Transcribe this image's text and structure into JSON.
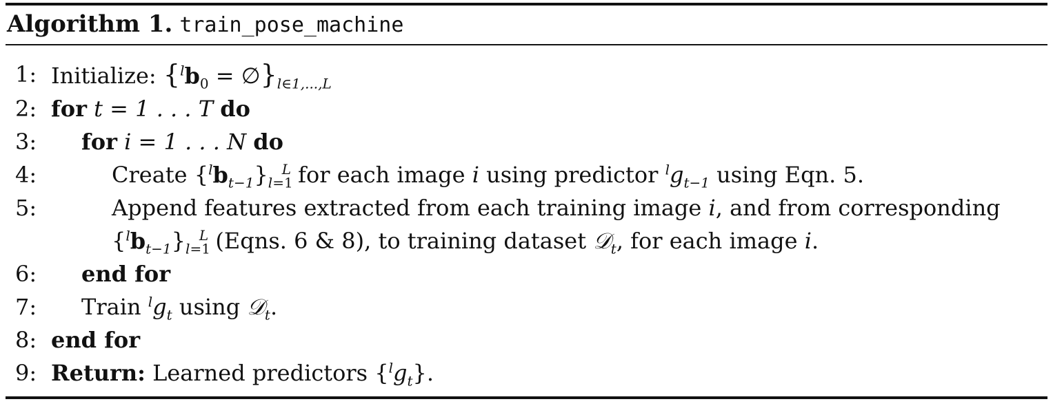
{
  "algorithm": {
    "label": "Algorithm 1.",
    "name": "train_pose_machine"
  },
  "lines": {
    "l1": {
      "num": "1:",
      "kw": "Initialize:",
      "math": "{ˡb₀ = ∅}",
      "sub": "l∈1,...,L"
    },
    "l2": {
      "num": "2:",
      "for": "for",
      "expr": "t = 1 . . . T",
      "do": "do"
    },
    "l3": {
      "num": "3:",
      "for": "for",
      "expr": "i = 1 . . . N",
      "do": "do"
    },
    "l4": {
      "num": "4:",
      "text_a": "Create {",
      "text_b": " for each image ",
      "var_i": "i",
      "text_c": " using predictor ",
      "text_d": " using Eqn. 5."
    },
    "l5": {
      "num": "5:",
      "text_a": "Append features extracted from each training image ",
      "var_i": "i",
      "text_b": ", and from corresponding"
    },
    "l5b": {
      "text_a": " (Eqns. 6 & 8), to training dataset ",
      "text_b": ", for each image ",
      "var_i": "i",
      "text_c": "."
    },
    "l6": {
      "num": "6:",
      "kw": "end for"
    },
    "l7": {
      "num": "7:",
      "text_a": "Train ",
      "text_b": " using ",
      "text_c": "."
    },
    "l8": {
      "num": "8:",
      "kw": "end for"
    },
    "l9": {
      "num": "9:",
      "kw": "Return:",
      "text_a": " Learned predictors {",
      "text_b": "}."
    }
  }
}
